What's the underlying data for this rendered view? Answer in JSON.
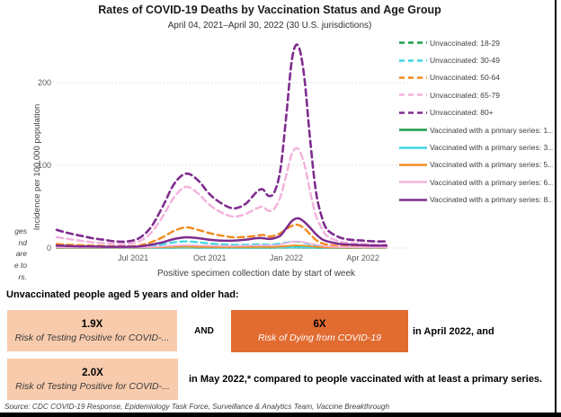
{
  "page": {
    "title": "Rates of COVID-19 Deaths by Vaccination Status and Age Group",
    "subtitle": "April 04, 2021–April 30, 2022 (30 U.S. jurisdictions)"
  },
  "chart_data": {
    "type": "line",
    "title": "Rates of COVID-19 Deaths by Vaccination Status and Age Group",
    "subtitle": "April 04, 2021–April 30, 2022 (30 U.S. jurisdictions)",
    "xlabel": "Positive specimen collection date by start of week",
    "ylabel": "Incidence per 100,000 population",
    "ylim": [
      0,
      250
    ],
    "yticks": [
      0,
      100,
      200
    ],
    "grid": "horizontal-dotted",
    "legend_position": "right",
    "x_unit": "weeks since 2021-04-04",
    "xticks": [
      {
        "label": "Jul 2021",
        "week": 13
      },
      {
        "label": "Oct 2021",
        "week": 26
      },
      {
        "label": "Jan 2022",
        "week": 39
      },
      {
        "label": "Apr 2022",
        "week": 52
      }
    ],
    "x_weeks": [
      0,
      2,
      4,
      6,
      8,
      10,
      12,
      14,
      16,
      18,
      20,
      22,
      24,
      26,
      28,
      30,
      32,
      34,
      35,
      36,
      37,
      38,
      39,
      40,
      41,
      42,
      43,
      44,
      45,
      46,
      48,
      50,
      52,
      54,
      56
    ],
    "series": [
      {
        "name": "Unvaccinated: 18-29",
        "color": "#1E9C4D",
        "dashed": true,
        "stroke_width": 2.2,
        "values": [
          0.4,
          0.3,
          0.3,
          0.3,
          0.2,
          0.2,
          0.2,
          0.3,
          0.6,
          1,
          1.4,
          1.6,
          1.4,
          1.1,
          0.9,
          0.8,
          0.8,
          0.9,
          0.9,
          0.8,
          0.9,
          1.1,
          1.3,
          1.5,
          1.5,
          1.3,
          0.9,
          0.6,
          0.4,
          0.3,
          0.2,
          0.2,
          0.2,
          0.2,
          0.2
        ]
      },
      {
        "name": "Unvaccinated: 30-49",
        "color": "#3FD5E4",
        "dashed": true,
        "stroke_width": 2.2,
        "values": [
          1.5,
          1.2,
          1,
          1,
          0.8,
          0.8,
          0.8,
          1.2,
          2.5,
          4.5,
          7,
          8,
          7,
          5.5,
          4.5,
          4,
          4,
          4.5,
          4.5,
          4,
          4.5,
          5.5,
          6.5,
          7.5,
          7.5,
          6.5,
          4.5,
          3,
          2,
          1.5,
          1,
          0.8,
          0.7,
          0.6,
          0.6
        ]
      },
      {
        "name": "Unvaccinated: 50-64",
        "color": "#F28C1E",
        "dashed": true,
        "stroke_width": 2.4,
        "values": [
          5,
          4,
          3.5,
          3,
          2.5,
          2,
          2,
          3,
          7,
          13,
          21,
          25,
          22,
          18,
          15,
          13,
          13.5,
          15,
          16,
          14,
          15,
          18,
          23,
          27,
          28,
          24,
          17,
          10,
          6,
          4,
          2.5,
          2,
          1.8,
          1.5,
          1.5
        ]
      },
      {
        "name": "Unvaccinated: 65-79",
        "color": "#F3B3DC",
        "dashed": true,
        "stroke_width": 2.5,
        "values": [
          13,
          11,
          9,
          7,
          6,
          5,
          5,
          8,
          18,
          38,
          62,
          74,
          66,
          52,
          43,
          38,
          41,
          48,
          50,
          45,
          48,
          62,
          88,
          115,
          120,
          103,
          70,
          40,
          24,
          14,
          8,
          6,
          5,
          4,
          4
        ]
      },
      {
        "name": "Unvaccinated: 80+",
        "color": "#7E2C8E",
        "dashed": true,
        "stroke_width": 2.6,
        "values": [
          22,
          18,
          15,
          12,
          10,
          8,
          8,
          12,
          25,
          50,
          78,
          90,
          82,
          65,
          54,
          48,
          53,
          68,
          71,
          63,
          68,
          95,
          160,
          230,
          245,
          210,
          135,
          70,
          38,
          22,
          13,
          10,
          9,
          8,
          8
        ]
      },
      {
        "name": "Vaccinated with a primary series: 1...",
        "color": "#1E9C4D",
        "dashed": false,
        "stroke_width": 1.8,
        "values": [
          0.1,
          0.1,
          0.1,
          0.1,
          0.1,
          0.1,
          0.1,
          0.1,
          0.15,
          0.2,
          0.25,
          0.3,
          0.25,
          0.2,
          0.2,
          0.2,
          0.2,
          0.25,
          0.25,
          0.25,
          0.25,
          0.3,
          0.35,
          0.4,
          0.4,
          0.35,
          0.3,
          0.2,
          0.15,
          0.1,
          0.1,
          0.1,
          0.1,
          0.1,
          0.1
        ]
      },
      {
        "name": "Vaccinated with a primary series: 3...",
        "color": "#3FD5E4",
        "dashed": false,
        "stroke_width": 1.8,
        "values": [
          0.2,
          0.2,
          0.2,
          0.15,
          0.15,
          0.15,
          0.15,
          0.2,
          0.3,
          0.4,
          0.5,
          0.6,
          0.5,
          0.45,
          0.4,
          0.4,
          0.45,
          0.5,
          0.5,
          0.5,
          0.5,
          0.6,
          0.8,
          0.9,
          1,
          0.9,
          0.7,
          0.5,
          0.4,
          0.3,
          0.2,
          0.2,
          0.15,
          0.15,
          0.15
        ]
      },
      {
        "name": "Vaccinated with a primary series: 5...",
        "color": "#F28C1E",
        "dashed": false,
        "stroke_width": 1.8,
        "values": [
          0.5,
          0.4,
          0.4,
          0.3,
          0.3,
          0.3,
          0.3,
          0.4,
          0.7,
          1,
          1.4,
          1.6,
          1.4,
          1.2,
          1.1,
          1.1,
          1.2,
          1.4,
          1.4,
          1.3,
          1.4,
          1.8,
          2.4,
          3,
          3.2,
          2.8,
          2.2,
          1.6,
          1.1,
          0.8,
          0.5,
          0.4,
          0.4,
          0.3,
          0.3
        ]
      },
      {
        "name": "Vaccinated with a primary series: 6...",
        "color": "#F3B3DC",
        "dashed": false,
        "stroke_width": 1.8,
        "values": [
          1,
          0.8,
          0.7,
          0.6,
          0.5,
          0.5,
          0.5,
          0.7,
          1.2,
          2,
          3,
          3.5,
          3.2,
          2.8,
          2.5,
          2.5,
          2.8,
          3.2,
          3.2,
          3,
          3.2,
          4,
          6,
          7.5,
          8,
          7,
          5.5,
          4,
          2.8,
          2,
          1.3,
          1,
          0.9,
          0.8,
          0.8
        ]
      },
      {
        "name": "Vaccinated with a primary series: 8...",
        "color": "#7E2C8E",
        "dashed": false,
        "stroke_width": 2.5,
        "values": [
          3,
          2.5,
          2,
          2,
          1.5,
          1.5,
          1.5,
          2,
          4,
          7,
          11,
          13,
          12,
          10,
          9,
          9,
          10,
          12,
          12,
          11,
          12,
          15,
          24,
          33,
          36,
          32,
          25,
          17,
          11,
          8,
          5,
          4,
          3.5,
          3,
          3
        ]
      }
    ]
  },
  "left_note_fragments": [
    "ges",
    "nd",
    "are",
    "e to",
    "rs."
  ],
  "summary": {
    "heading": "Unvaccinated people aged 5 years and older had:",
    "box1": {
      "multiplier": "1.9X",
      "label": "Risk of Testing Positive for COVID-..."
    },
    "and_label": "AND",
    "box2": {
      "multiplier": "6X",
      "label": "Risk of Dying from COVID-19"
    },
    "after_box2": "in April 2022, and",
    "box3": {
      "multiplier": "2.0X",
      "label": "Risk of Testing Positive for COVID-..."
    },
    "after_box3": "in May 2022,* compared to people vaccinated with at least a primary series."
  },
  "source": "Source: CDC COVID-19 Response, Epidemiology Task Force, Surveillance & Analytics Team, Vaccine Breakthrough",
  "colors": {
    "peach_box": "#F8CBAD",
    "orange_box": "#E26B30",
    "grid_line": "#D9D9D9"
  }
}
